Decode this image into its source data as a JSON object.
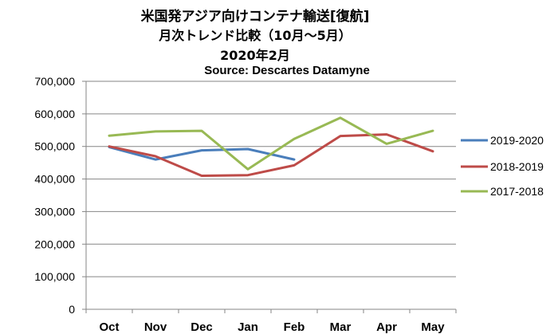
{
  "chart_data": {
    "type": "line",
    "title": "米国発アジア向けコンテナ輸送[復航]",
    "subtitle": "月次トレンド比較（10月～5月）",
    "date_label": "2020年2月",
    "source": "Source:  Descartes Datamyne",
    "categories": [
      "Oct",
      "Nov",
      "Dec",
      "Jan",
      "Feb",
      "Mar",
      "Apr",
      "May"
    ],
    "ylim": [
      0,
      700000
    ],
    "yticks": [
      0,
      100000,
      200000,
      300000,
      400000,
      500000,
      600000,
      700000
    ],
    "ytick_labels": [
      "0",
      "100,000",
      "200,000",
      "300,000",
      "400,000",
      "500,000",
      "600,000",
      "700,000"
    ],
    "grid": true,
    "legend_position": "right",
    "series": [
      {
        "name": "2019-2020",
        "color": "#4a7ebb",
        "values": [
          498000,
          460000,
          488000,
          492000,
          460000,
          null,
          null,
          null
        ]
      },
      {
        "name": "2018-2019",
        "color": "#be4b48",
        "values": [
          500000,
          470000,
          410000,
          412000,
          442000,
          532000,
          537000,
          485000
        ]
      },
      {
        "name": "2017-2018",
        "color": "#98b954",
        "values": [
          533000,
          546000,
          548000,
          430000,
          523000,
          588000,
          508000,
          548000
        ]
      }
    ]
  }
}
